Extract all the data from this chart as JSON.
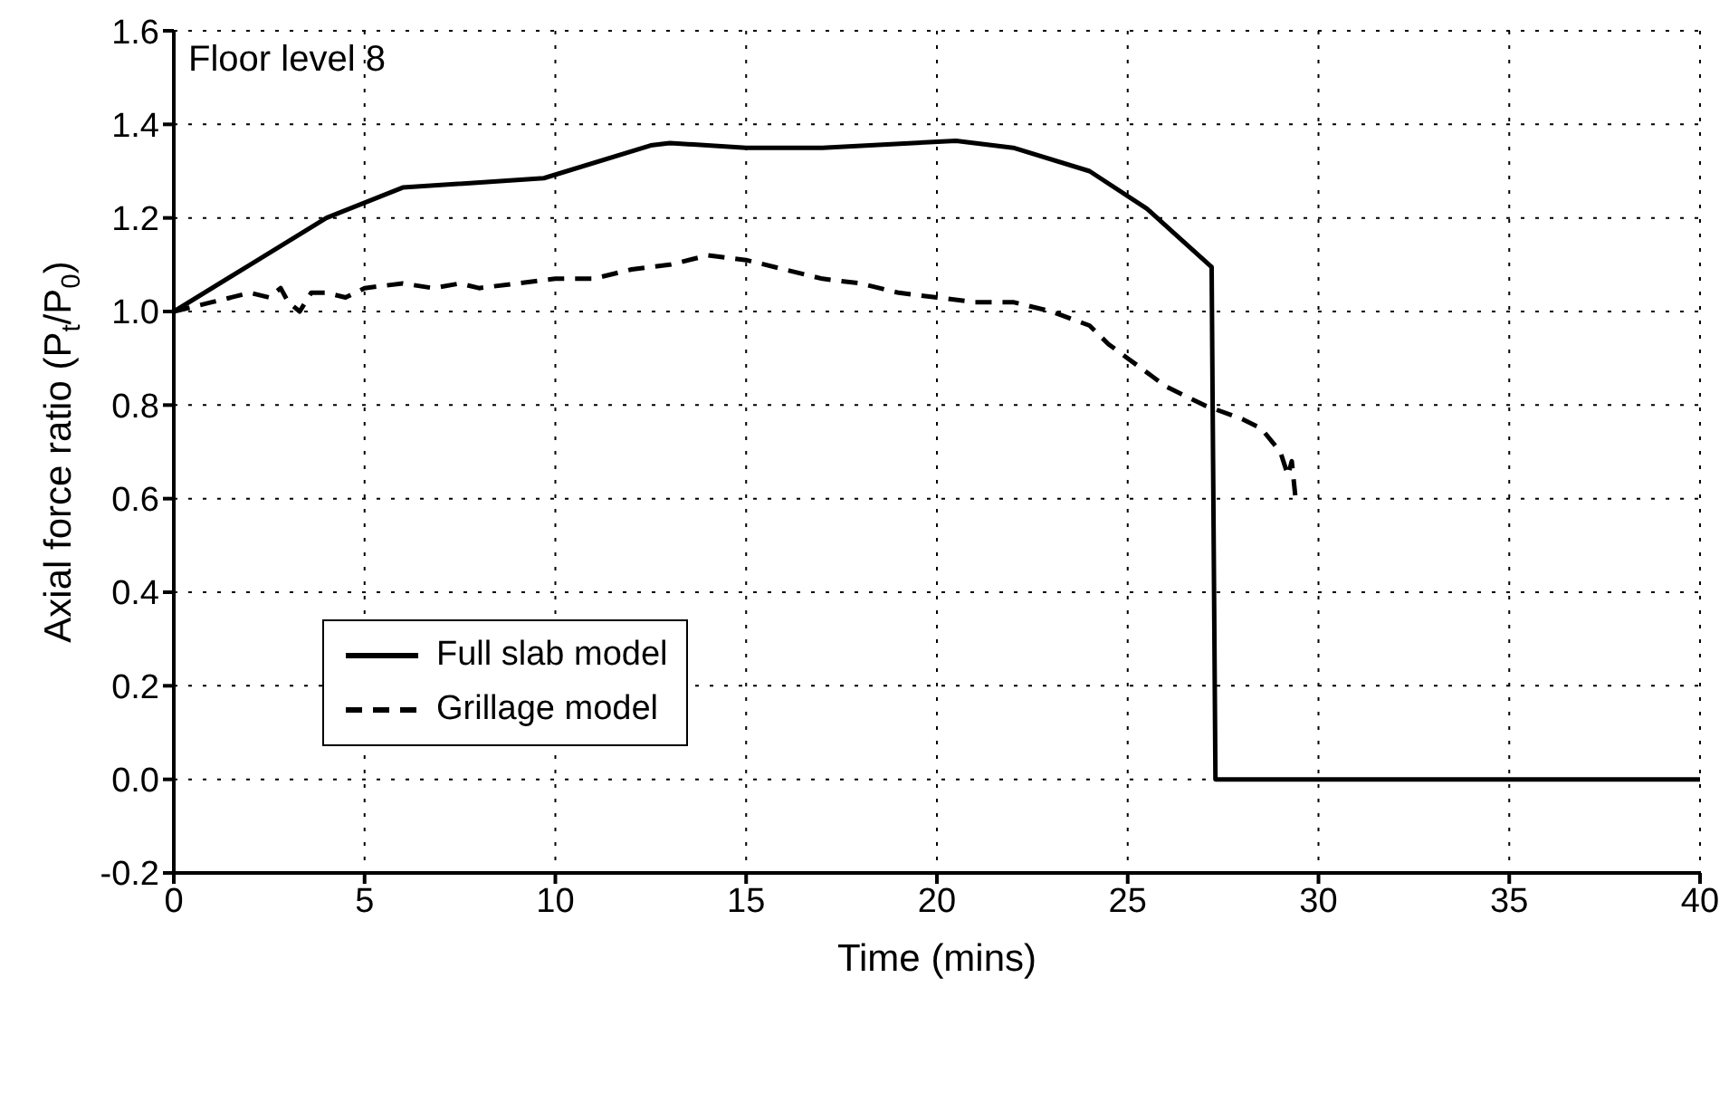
{
  "chart_data": {
    "type": "line",
    "title": "Floor level 8",
    "xlabel": "Time (mins)",
    "ylabel": "Axial force ratio (P$_{t}$/P$_{0}$)",
    "xlim": [
      0,
      40
    ],
    "xticks": [
      0,
      5,
      10,
      15,
      20,
      25,
      30,
      35,
      40
    ],
    "ylim": [
      -0.2,
      1.6
    ],
    "yticks": [
      -0.2,
      {
        "value": 0,
        "label": "0.0"
      },
      0.2,
      0.4,
      0.6,
      0.8,
      {
        "value": 1,
        "label": "1.0"
      },
      1.2,
      1.4,
      1.6
    ],
    "grid": true,
    "legend": "left",
    "marker": "none",
    "series": [
      {
        "name": "Full slab model",
        "color": "#000000",
        "line_style": "solid",
        "x": [
          0,
          2,
          4,
          6,
          9.7,
          12.5,
          13,
          15,
          17,
          20.5,
          22,
          24,
          25.5,
          27.2,
          27.3,
          30,
          35,
          40
        ],
        "values": [
          1.0,
          1.1,
          1.2,
          1.265,
          1.285,
          1.355,
          1.36,
          1.35,
          1.35,
          1.365,
          1.35,
          1.3,
          1.22,
          1.095,
          0.0,
          0.0,
          0.0,
          0.0
        ]
      },
      {
        "name": "Grillage model",
        "color": "#000000",
        "line_style": "dashed",
        "x": [
          0,
          1,
          2,
          2.5,
          2.8,
          3,
          3.3,
          3.6,
          4,
          4.5,
          5,
          6,
          6.8,
          7.5,
          8,
          9,
          10,
          11,
          12,
          13,
          14,
          15,
          16,
          17,
          18,
          19,
          20,
          21,
          22,
          23,
          24,
          24.5,
          25,
          25.5,
          26,
          27,
          28,
          28.5,
          29,
          29.2,
          29.3,
          29.4
        ],
        "values": [
          1.0,
          1.02,
          1.04,
          1.03,
          1.05,
          1.02,
          1.0,
          1.04,
          1.04,
          1.03,
          1.05,
          1.06,
          1.05,
          1.06,
          1.05,
          1.06,
          1.07,
          1.07,
          1.09,
          1.1,
          1.12,
          1.11,
          1.09,
          1.07,
          1.06,
          1.04,
          1.03,
          1.02,
          1.02,
          1.0,
          0.97,
          0.93,
          0.9,
          0.87,
          0.84,
          0.8,
          0.77,
          0.75,
          0.7,
          0.65,
          0.68,
          0.6
        ]
      }
    ]
  }
}
